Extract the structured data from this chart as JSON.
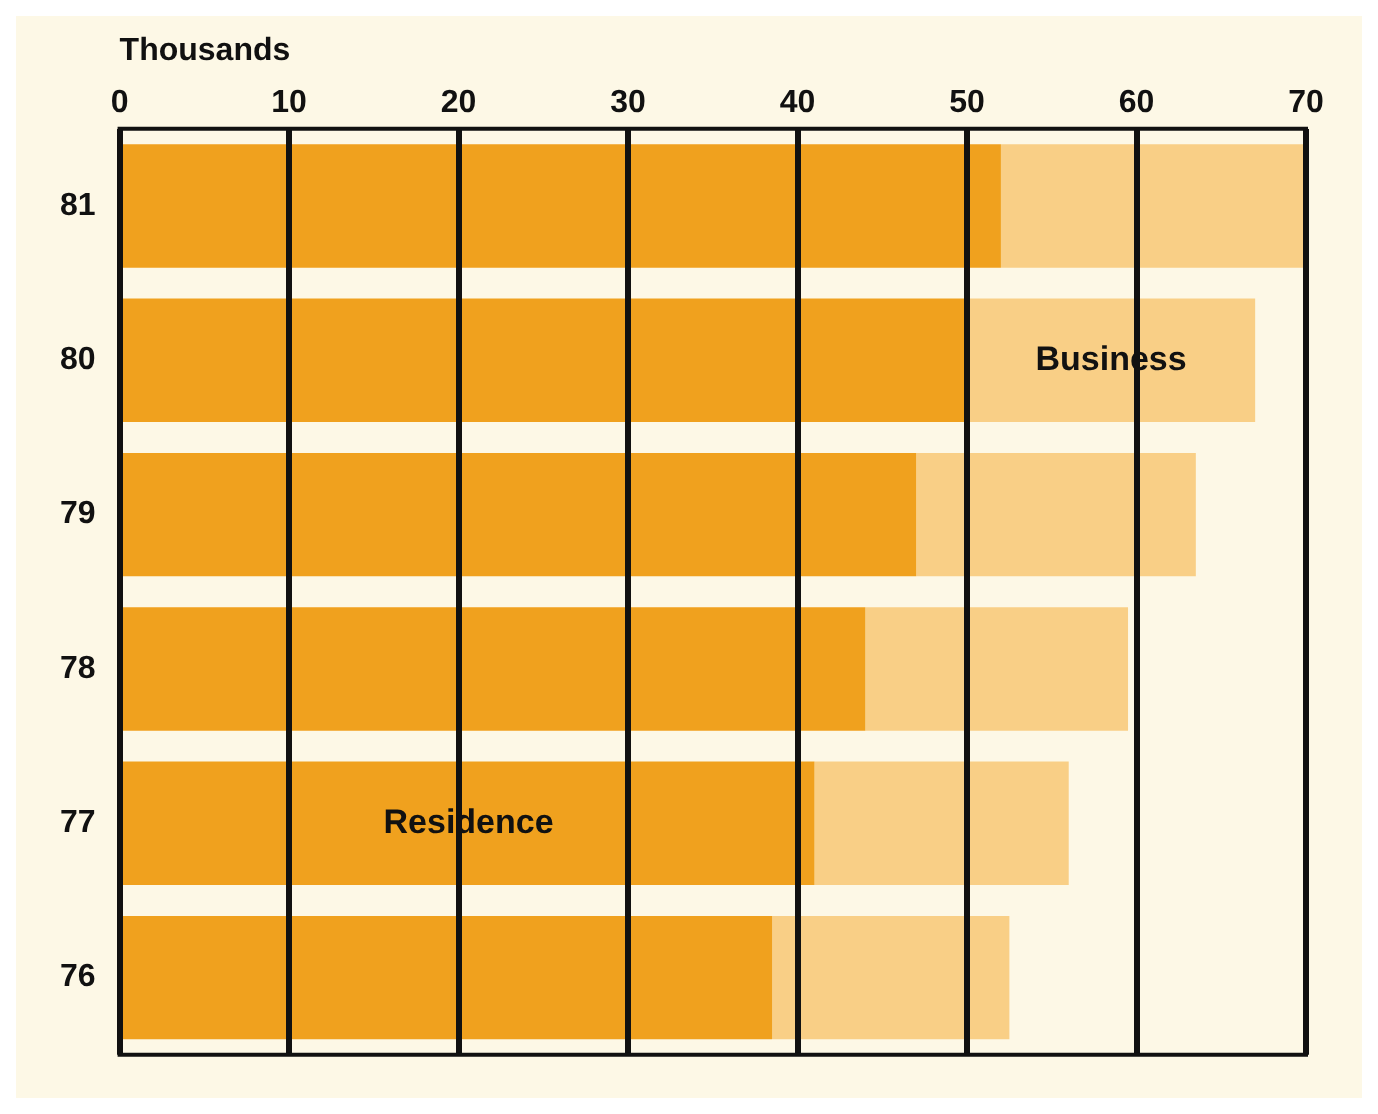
{
  "chart_data": {
    "type": "bar",
    "orientation": "horizontal",
    "stacked": true,
    "xlabel": "Thousands",
    "categories": [
      "81",
      "80",
      "79",
      "78",
      "77",
      "76"
    ],
    "series": [
      {
        "name": "Residence",
        "color": "#f0a11e",
        "values": [
          52,
          50,
          47,
          44,
          41,
          38.5
        ]
      },
      {
        "name": "Business",
        "color": "#f9cf86",
        "values": [
          18,
          17,
          16.5,
          15.5,
          15,
          14
        ]
      }
    ],
    "xlim": [
      0,
      70
    ],
    "xticks": [
      0,
      10,
      20,
      30,
      40,
      50,
      60,
      70
    ],
    "grid": "x",
    "legend": false
  }
}
